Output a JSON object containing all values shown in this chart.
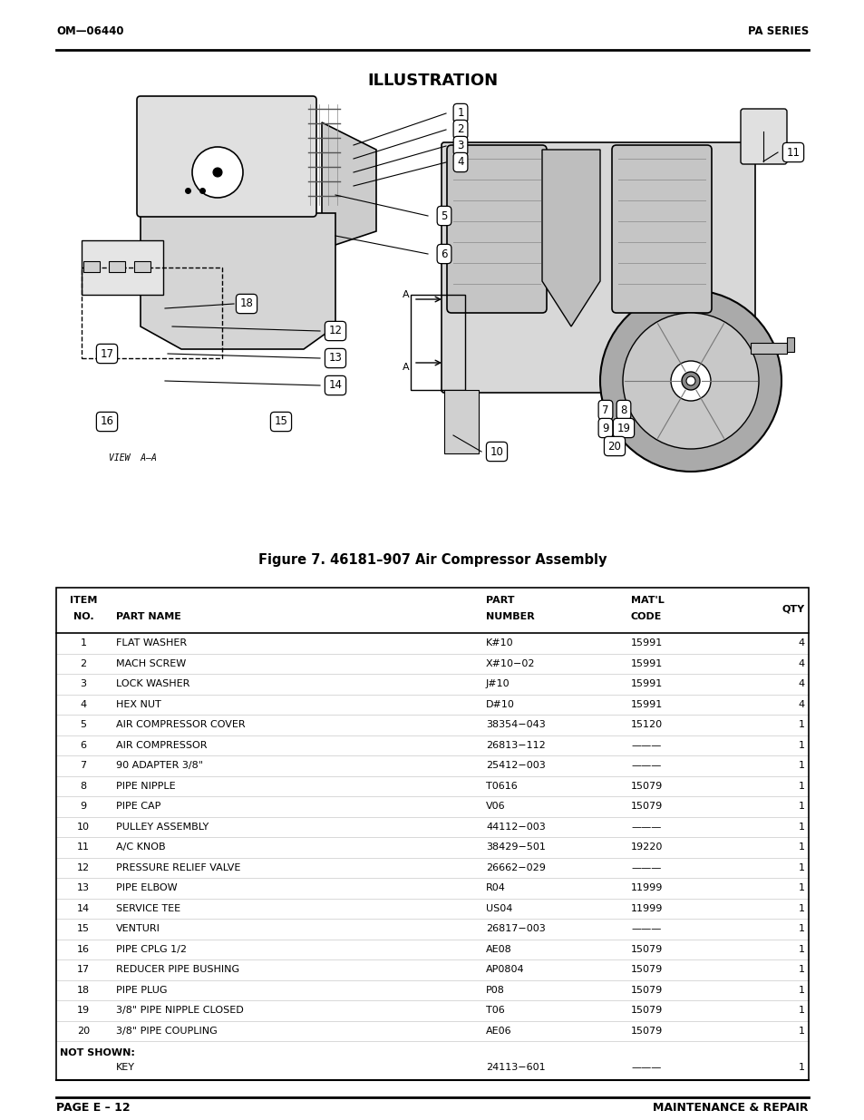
{
  "header_left": "OM—06440",
  "header_right": "PA SERIES",
  "title": "ILLUSTRATION",
  "figure_caption": "Figure 7. 46181–907 Air Compressor Assembly",
  "footer_left": "PAGE E – 12",
  "footer_right": "MAINTENANCE & REPAIR",
  "table_rows": [
    [
      "1",
      "FLAT WASHER",
      "K#10",
      "15991",
      "4"
    ],
    [
      "2",
      "MACH SCREW",
      "X#10−02",
      "15991",
      "4"
    ],
    [
      "3",
      "LOCK WASHER",
      "J#10",
      "15991",
      "4"
    ],
    [
      "4",
      "HEX NUT",
      "D#10",
      "15991",
      "4"
    ],
    [
      "5",
      "AIR COMPRESSOR COVER",
      "38354−043",
      "15120",
      "1"
    ],
    [
      "6",
      "AIR COMPRESSOR",
      "26813−112",
      "———",
      "1"
    ],
    [
      "7",
      "90 ADAPTER 3/8\"",
      "25412−003",
      "———",
      "1"
    ],
    [
      "8",
      "PIPE NIPPLE",
      "T0616",
      "15079",
      "1"
    ],
    [
      "9",
      "PIPE CAP",
      "V06",
      "15079",
      "1"
    ],
    [
      "10",
      "PULLEY ASSEMBLY",
      "44112−003",
      "———",
      "1"
    ],
    [
      "11",
      "A/C KNOB",
      "38429−501",
      "19220",
      "1"
    ],
    [
      "12",
      "PRESSURE RELIEF VALVE",
      "26662−029",
      "———",
      "1"
    ],
    [
      "13",
      "PIPE ELBOW",
      "R04",
      "11999",
      "1"
    ],
    [
      "14",
      "SERVICE TEE",
      "US04",
      "11999",
      "1"
    ],
    [
      "15",
      "VENTURI",
      "26817−003",
      "———",
      "1"
    ],
    [
      "16",
      "PIPE CPLG 1/2",
      "AE08",
      "15079",
      "1"
    ],
    [
      "17",
      "REDUCER PIPE BUSHING",
      "AP0804",
      "15079",
      "1"
    ],
    [
      "18",
      "PIPE PLUG",
      "P08",
      "15079",
      "1"
    ],
    [
      "19",
      "3/8\" PIPE NIPPLE CLOSED",
      "T06",
      "15079",
      "1"
    ],
    [
      "20",
      "3/8\" PIPE COUPLING",
      "AE06",
      "15079",
      "1"
    ]
  ],
  "not_shown_label": "NOT SHOWN:",
  "not_shown_key_row": [
    "",
    "KEY",
    "24113−601",
    "———",
    "1"
  ],
  "bg_color": "#ffffff",
  "text_color": "#000000",
  "line_color": "#000000"
}
